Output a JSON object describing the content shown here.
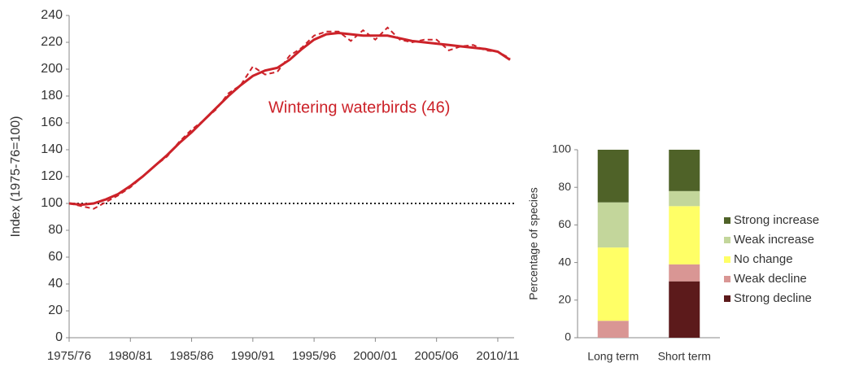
{
  "chart_data": [
    {
      "type": "line",
      "ylabel": "Index (1975-76=100)",
      "annotation": "Wintering waterbirds (46)",
      "categories": [
        "1975/76",
        null,
        null,
        null,
        null,
        "1980/81",
        null,
        null,
        null,
        null,
        "1985/86",
        null,
        null,
        null,
        null,
        "1990/91",
        null,
        null,
        null,
        null,
        "1995/96",
        null,
        null,
        null,
        null,
        "2000/01",
        null,
        null,
        null,
        null,
        "2005/06",
        null,
        null,
        null,
        null,
        "2010/11",
        null
      ],
      "series": [
        {
          "color": "#cc2229",
          "style": "dashed",
          "values": [
            100,
            98,
            96,
            101,
            106,
            112,
            120,
            128,
            135,
            146,
            155,
            162,
            170,
            182,
            188,
            202,
            196,
            198,
            210,
            216,
            225,
            228,
            228,
            221,
            229,
            222,
            231,
            222,
            220,
            222,
            222,
            214,
            217,
            218,
            214,
            213,
            208
          ]
        },
        {
          "color": "#cc2229",
          "style": "solid",
          "values": [
            100,
            99,
            100,
            103,
            107,
            113,
            120,
            128,
            136,
            145,
            153,
            162,
            171,
            180,
            188,
            195,
            199,
            201,
            207,
            215,
            222,
            226,
            227,
            226,
            225,
            225,
            225,
            223,
            221,
            220,
            219,
            218,
            217,
            216,
            215,
            213,
            207
          ]
        }
      ],
      "reference_line": 100,
      "ylim": [
        0,
        240
      ],
      "yticks": [
        0,
        20,
        40,
        60,
        80,
        100,
        120,
        140,
        160,
        180,
        200,
        220,
        240
      ]
    },
    {
      "type": "bar",
      "stacked": true,
      "ylabel": "Percentage of species",
      "categories": [
        "Long term",
        "Short term"
      ],
      "series": [
        {
          "name": "Strong decline",
          "color": "#5c1a1b",
          "values": [
            0,
            30
          ]
        },
        {
          "name": "Weak decline",
          "color": "#d99694",
          "values": [
            9,
            9
          ]
        },
        {
          "name": "No change",
          "color": "#ffff66",
          "values": [
            39,
            31
          ]
        },
        {
          "name": "Weak increase",
          "color": "#c3d69b",
          "values": [
            24,
            8
          ]
        },
        {
          "name": "Strong increase",
          "color": "#4f6228",
          "values": [
            28,
            22
          ]
        }
      ],
      "ylim": [
        0,
        100
      ],
      "yticks": [
        0,
        20,
        40,
        60,
        80,
        100
      ]
    }
  ]
}
